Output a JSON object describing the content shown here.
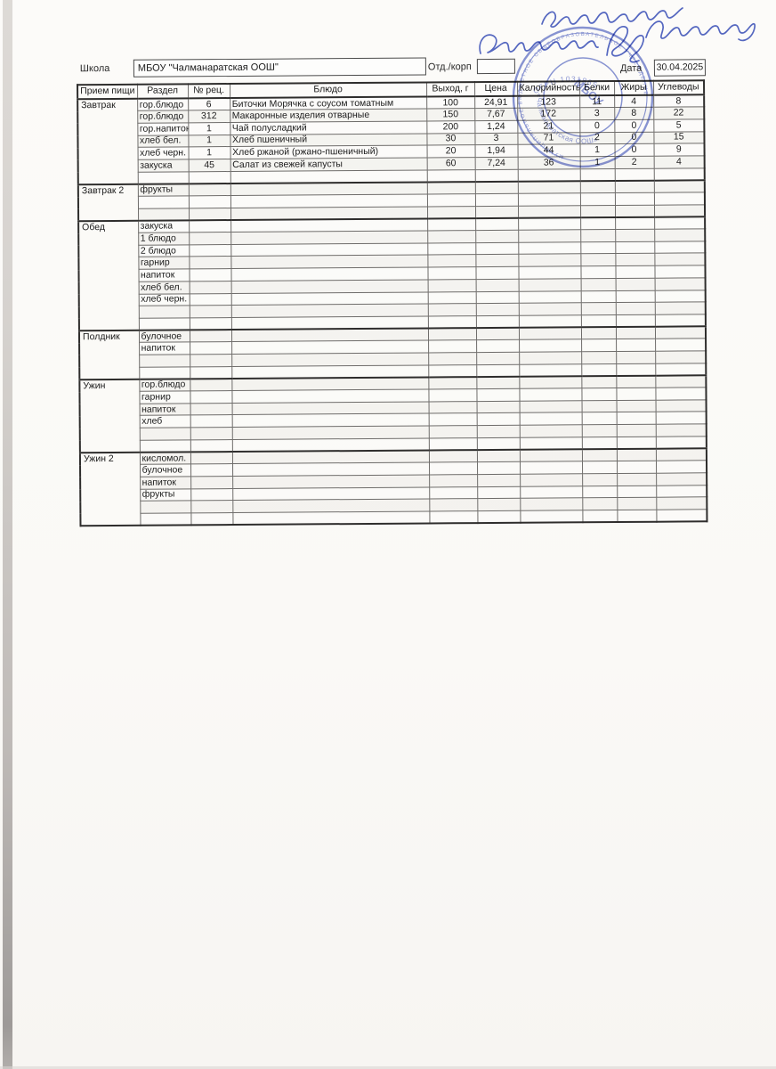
{
  "form": {
    "school_label": "Школа",
    "school_value": "МБОУ \"Чалманаратская ООШ\"",
    "dept_label": "Отд./корп",
    "dept_value": "",
    "date_label": "Дата",
    "date_value": "30.04.2025"
  },
  "handwriting": {
    "line1": "Утверждаю",
    "line2": "Директор",
    "signature": "Ахметова"
  },
  "stamp": {
    "ring_text": "МУНИЦИПАЛЬНОЕ БЮДЖЕТНОЕ ОБЩЕОБРАЗОВАТЕЛЬНОЕ УЧРЕЖДЕНИЕ",
    "ogrn_text": "ОГРН 1031865",
    "center_text": "МБОУ",
    "name_text": "«Чалманаратская ООШ»",
    "color": "#4a5cc0"
  },
  "table": {
    "columns": [
      "Прием пищи",
      "Раздел",
      "№ рец.",
      "Блюдо",
      "Выход, г",
      "Цена",
      "Калорийность",
      "Белки",
      "Жиры",
      "Углеводы"
    ],
    "sections": [
      {
        "name": "Завтрак",
        "rows": [
          {
            "razdel": "гор.блюдо",
            "rec": "6",
            "dish": "Биточки Морячка с соусом томатным",
            "out": "100",
            "price": "24,91",
            "kcal": "123",
            "protein": "11",
            "fat": "4",
            "carbs": "8"
          },
          {
            "razdel": "гор.блюдо",
            "rec": "312",
            "dish": "Макаронные изделия отварные",
            "out": "150",
            "price": "7,67",
            "kcal": "172",
            "protein": "3",
            "fat": "8",
            "carbs": "22"
          },
          {
            "razdel": "гор.напиток",
            "rec": "1",
            "dish": "Чай полусладкий",
            "out": "200",
            "price": "1,24",
            "kcal": "21",
            "protein": "0",
            "fat": "0",
            "carbs": "5"
          },
          {
            "razdel": "хлеб бел.",
            "rec": "1",
            "dish": "Хлеб пшеничный",
            "out": "30",
            "price": "3",
            "kcal": "71",
            "protein": "2",
            "fat": "0",
            "carbs": "15"
          },
          {
            "razdel": "хлеб черн.",
            "rec": "1",
            "dish": "Хлеб ржаной (ржано-пшеничный)",
            "out": "20",
            "price": "1,94",
            "kcal": "44",
            "protein": "1",
            "fat": "0",
            "carbs": "9"
          },
          {
            "razdel": "закуска",
            "rec": "45",
            "dish": "Салат из свежей капусты",
            "out": "60",
            "price": "7,24",
            "kcal": "36",
            "protein": "1",
            "fat": "2",
            "carbs": "4"
          },
          {
            "razdel": "",
            "rec": "",
            "dish": "",
            "out": "",
            "price": "",
            "kcal": "",
            "protein": "",
            "fat": "",
            "carbs": ""
          }
        ]
      },
      {
        "name": "Завтрак 2",
        "rows": [
          {
            "razdel": "фрукты",
            "rec": "",
            "dish": "",
            "out": "",
            "price": "",
            "kcal": "",
            "protein": "",
            "fat": "",
            "carbs": ""
          },
          {
            "razdel": "",
            "rec": "",
            "dish": "",
            "out": "",
            "price": "",
            "kcal": "",
            "protein": "",
            "fat": "",
            "carbs": ""
          },
          {
            "razdel": "",
            "rec": "",
            "dish": "",
            "out": "",
            "price": "",
            "kcal": "",
            "protein": "",
            "fat": "",
            "carbs": ""
          }
        ]
      },
      {
        "name": "Обед",
        "rows": [
          {
            "razdel": "закуска",
            "rec": "",
            "dish": "",
            "out": "",
            "price": "",
            "kcal": "",
            "protein": "",
            "fat": "",
            "carbs": ""
          },
          {
            "razdel": "1 блюдо",
            "rec": "",
            "dish": "",
            "out": "",
            "price": "",
            "kcal": "",
            "protein": "",
            "fat": "",
            "carbs": ""
          },
          {
            "razdel": "2 блюдо",
            "rec": "",
            "dish": "",
            "out": "",
            "price": "",
            "kcal": "",
            "protein": "",
            "fat": "",
            "carbs": ""
          },
          {
            "razdel": "гарнир",
            "rec": "",
            "dish": "",
            "out": "",
            "price": "",
            "kcal": "",
            "protein": "",
            "fat": "",
            "carbs": ""
          },
          {
            "razdel": "напиток",
            "rec": "",
            "dish": "",
            "out": "",
            "price": "",
            "kcal": "",
            "protein": "",
            "fat": "",
            "carbs": ""
          },
          {
            "razdel": "хлеб бел.",
            "rec": "",
            "dish": "",
            "out": "",
            "price": "",
            "kcal": "",
            "protein": "",
            "fat": "",
            "carbs": ""
          },
          {
            "razdel": "хлеб черн.",
            "rec": "",
            "dish": "",
            "out": "",
            "price": "",
            "kcal": "",
            "protein": "",
            "fat": "",
            "carbs": ""
          },
          {
            "razdel": "",
            "rec": "",
            "dish": "",
            "out": "",
            "price": "",
            "kcal": "",
            "protein": "",
            "fat": "",
            "carbs": ""
          },
          {
            "razdel": "",
            "rec": "",
            "dish": "",
            "out": "",
            "price": "",
            "kcal": "",
            "protein": "",
            "fat": "",
            "carbs": ""
          }
        ]
      },
      {
        "name": "Полдник",
        "rows": [
          {
            "razdel": "булочное",
            "rec": "",
            "dish": "",
            "out": "",
            "price": "",
            "kcal": "",
            "protein": "",
            "fat": "",
            "carbs": ""
          },
          {
            "razdel": "напиток",
            "rec": "",
            "dish": "",
            "out": "",
            "price": "",
            "kcal": "",
            "protein": "",
            "fat": "",
            "carbs": ""
          },
          {
            "razdel": "",
            "rec": "",
            "dish": "",
            "out": "",
            "price": "",
            "kcal": "",
            "protein": "",
            "fat": "",
            "carbs": ""
          },
          {
            "razdel": "",
            "rec": "",
            "dish": "",
            "out": "",
            "price": "",
            "kcal": "",
            "protein": "",
            "fat": "",
            "carbs": ""
          }
        ]
      },
      {
        "name": "Ужин",
        "rows": [
          {
            "razdel": "гор.блюдо",
            "rec": "",
            "dish": "",
            "out": "",
            "price": "",
            "kcal": "",
            "protein": "",
            "fat": "",
            "carbs": ""
          },
          {
            "razdel": "гарнир",
            "rec": "",
            "dish": "",
            "out": "",
            "price": "",
            "kcal": "",
            "protein": "",
            "fat": "",
            "carbs": ""
          },
          {
            "razdel": "напиток",
            "rec": "",
            "dish": "",
            "out": "",
            "price": "",
            "kcal": "",
            "protein": "",
            "fat": "",
            "carbs": ""
          },
          {
            "razdel": "хлеб",
            "rec": "",
            "dish": "",
            "out": "",
            "price": "",
            "kcal": "",
            "protein": "",
            "fat": "",
            "carbs": ""
          },
          {
            "razdel": "",
            "rec": "",
            "dish": "",
            "out": "",
            "price": "",
            "kcal": "",
            "protein": "",
            "fat": "",
            "carbs": ""
          },
          {
            "razdel": "",
            "rec": "",
            "dish": "",
            "out": "",
            "price": "",
            "kcal": "",
            "protein": "",
            "fat": "",
            "carbs": ""
          }
        ]
      },
      {
        "name": "Ужин 2",
        "rows": [
          {
            "razdel": "кисломол.",
            "rec": "",
            "dish": "",
            "out": "",
            "price": "",
            "kcal": "",
            "protein": "",
            "fat": "",
            "carbs": ""
          },
          {
            "razdel": "булочное",
            "rec": "",
            "dish": "",
            "out": "",
            "price": "",
            "kcal": "",
            "protein": "",
            "fat": "",
            "carbs": ""
          },
          {
            "razdel": "напиток",
            "rec": "",
            "dish": "",
            "out": "",
            "price": "",
            "kcal": "",
            "protein": "",
            "fat": "",
            "carbs": ""
          },
          {
            "razdel": "фрукты",
            "rec": "",
            "dish": "",
            "out": "",
            "price": "",
            "kcal": "",
            "protein": "",
            "fat": "",
            "carbs": ""
          },
          {
            "razdel": "",
            "rec": "",
            "dish": "",
            "out": "",
            "price": "",
            "kcal": "",
            "protein": "",
            "fat": "",
            "carbs": ""
          },
          {
            "razdel": "",
            "rec": "",
            "dish": "",
            "out": "",
            "price": "",
            "kcal": "",
            "protein": "",
            "fat": "",
            "carbs": ""
          }
        ]
      }
    ]
  }
}
